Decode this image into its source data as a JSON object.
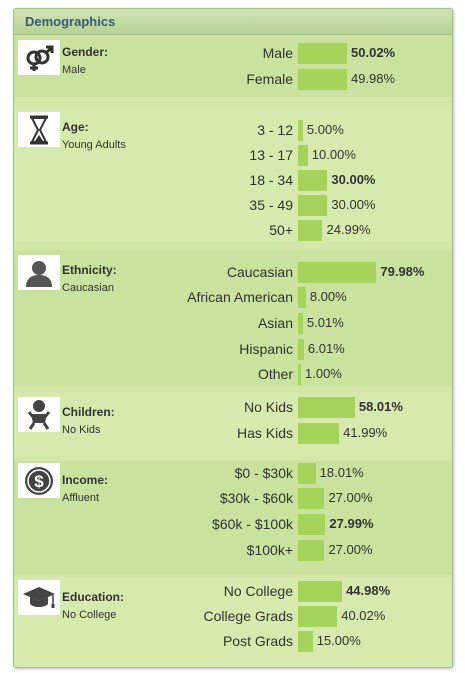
{
  "panel": {
    "title": "Demographics"
  },
  "sections": [
    {
      "key": "gender",
      "title": "Gender:",
      "value": "Male",
      "icon": "gender-icon",
      "rows": [
        {
          "label": "Male",
          "pct": "50.02%",
          "val": 50.02,
          "bold": true
        },
        {
          "label": "Female",
          "pct": "49.98%",
          "val": 49.98,
          "bold": false
        }
      ]
    },
    {
      "key": "age",
      "title": "Age:",
      "value": "Young Adults",
      "icon": "hourglass-icon",
      "rows": [
        {
          "label": "3 - 12",
          "pct": "5.00%",
          "val": 5.0,
          "bold": false
        },
        {
          "label": "13 - 17",
          "pct": "10.00%",
          "val": 10.0,
          "bold": false
        },
        {
          "label": "18 - 34",
          "pct": "30.00%",
          "val": 30.0,
          "bold": true
        },
        {
          "label": "35 - 49",
          "pct": "30.00%",
          "val": 30.0,
          "bold": false
        },
        {
          "label": "50+",
          "pct": "24.99%",
          "val": 24.99,
          "bold": false
        }
      ]
    },
    {
      "key": "ethnicity",
      "title": "Ethnicity:",
      "value": "Caucasian",
      "icon": "person-icon",
      "rows": [
        {
          "label": "Caucasian",
          "pct": "79.98%",
          "val": 79.98,
          "bold": true
        },
        {
          "label": "African American",
          "pct": "8.00%",
          "val": 8.0,
          "bold": false
        },
        {
          "label": "Asian",
          "pct": "5.01%",
          "val": 5.01,
          "bold": false
        },
        {
          "label": "Hispanic",
          "pct": "6.01%",
          "val": 6.01,
          "bold": false
        },
        {
          "label": "Other",
          "pct": "1.00%",
          "val": 1.0,
          "bold": false
        }
      ]
    },
    {
      "key": "children",
      "title": "Children:",
      "value": "No Kids",
      "icon": "baby-icon",
      "rows": [
        {
          "label": "No Kids",
          "pct": "58.01%",
          "val": 58.01,
          "bold": true
        },
        {
          "label": "Has Kids",
          "pct": "41.99%",
          "val": 41.99,
          "bold": false
        }
      ]
    },
    {
      "key": "income",
      "title": "Income:",
      "value": "Affluent",
      "icon": "dollar-icon",
      "rows": [
        {
          "label": "$0 - $30k",
          "pct": "18.01%",
          "val": 18.01,
          "bold": false
        },
        {
          "label": "$30k - $60k",
          "pct": "27.00%",
          "val": 27.0,
          "bold": false
        },
        {
          "label": "$60k - $100k",
          "pct": "27.99%",
          "val": 27.99,
          "bold": true
        },
        {
          "label": "$100k+",
          "pct": "27.00%",
          "val": 27.0,
          "bold": false
        }
      ]
    },
    {
      "key": "education",
      "title": "Education:",
      "value": "No College",
      "icon": "graduation-cap-icon",
      "rows": [
        {
          "label": "No College",
          "pct": "44.98%",
          "val": 44.98,
          "bold": true
        },
        {
          "label": "College Grads",
          "pct": "40.02%",
          "val": 40.02,
          "bold": false
        },
        {
          "label": "Post Grads",
          "pct": "15.00%",
          "val": 15.0,
          "bold": false
        }
      ]
    }
  ],
  "colors": {
    "bar": "#a6d45a",
    "section_alt": "#c9e29d",
    "section_base": "#d6eaae",
    "header_text": "#3a5a74"
  }
}
